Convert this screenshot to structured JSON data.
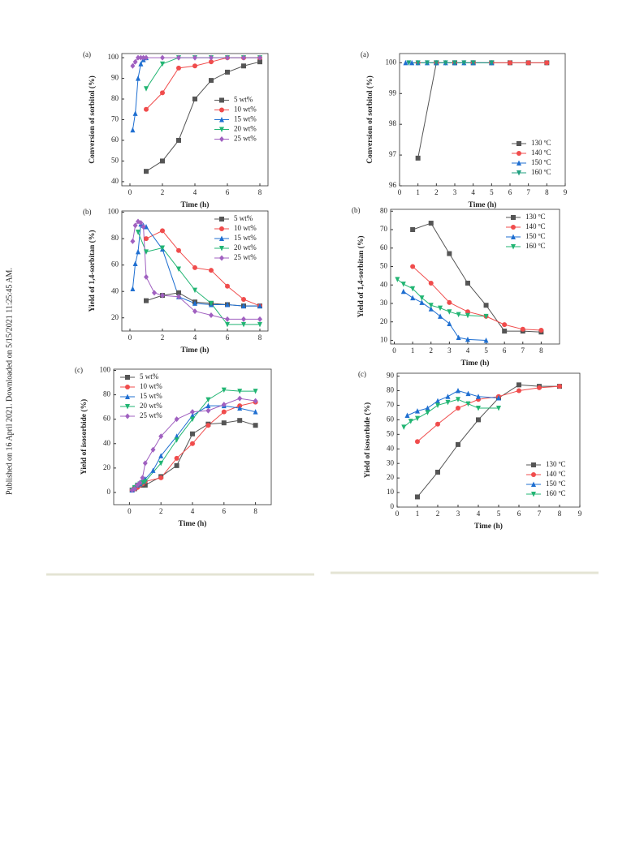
{
  "sidebar": {
    "text": "Published on 16 April 2021. Downloaded on 5/15/2021 11:25:45 AM."
  },
  "chart_data": [
    {
      "type": "line",
      "label": "(a)",
      "y_label": "Conversion of sorbitol (%)",
      "x_label": "Time (h)",
      "xlim": [
        -0.5,
        8.5
      ],
      "xticks": [
        0,
        2,
        4,
        6,
        8
      ],
      "ylim": [
        38,
        102
      ],
      "yticks": [
        40,
        50,
        60,
        70,
        80,
        90,
        100
      ],
      "grid": false,
      "legend": "center right",
      "series": [
        {
          "name": "5 wt%",
          "color": "#555555",
          "marker": "square",
          "x": [
            1,
            2,
            3,
            4,
            5,
            6,
            7,
            8
          ],
          "values": [
            45,
            50,
            60,
            80,
            89,
            93,
            96,
            98
          ]
        },
        {
          "name": "10 wt%",
          "color": "#f04c4c",
          "marker": "circle",
          "x": [
            1,
            2,
            3,
            4,
            5,
            6,
            7,
            8
          ],
          "values": [
            75,
            83,
            95,
            96,
            98,
            100,
            100,
            100
          ]
        },
        {
          "name": "15 wt%",
          "color": "#1f6fd1",
          "marker": "triangle-up",
          "x": [
            0.17,
            0.33,
            0.5,
            0.67,
            0.83,
            1
          ],
          "values": [
            65,
            73,
            90,
            97,
            99,
            100
          ]
        },
        {
          "name": "20 wt%",
          "color": "#22b573",
          "marker": "triangle-down",
          "x": [
            1,
            2,
            3,
            4,
            5,
            6,
            7,
            8
          ],
          "values": [
            85,
            97,
            100,
            100,
            100,
            100,
            100,
            100
          ]
        },
        {
          "name": "25 wt%",
          "color": "#a060c0",
          "marker": "diamond",
          "x": [
            0.17,
            0.33,
            0.5,
            0.67,
            0.83,
            1,
            2,
            3,
            4,
            5,
            6,
            7,
            8
          ],
          "values": [
            96,
            98,
            100,
            100,
            100,
            100,
            100,
            100,
            100,
            100,
            100,
            100,
            100
          ]
        }
      ]
    },
    {
      "type": "line",
      "label": "(a)",
      "y_label": "Conversion of sorbitol (%)",
      "x_label": "Time (h)",
      "xlim": [
        0,
        9
      ],
      "xticks": [
        0,
        1,
        2,
        3,
        4,
        5,
        6,
        7,
        8,
        9
      ],
      "ylim": [
        96,
        100.3
      ],
      "yticks": [
        96,
        97,
        98,
        99,
        100
      ],
      "grid": false,
      "legend": "lower right",
      "series": [
        {
          "name": "130 ºC",
          "color": "#555555",
          "marker": "square",
          "x": [
            1,
            2,
            3,
            4,
            5,
            6,
            7,
            8
          ],
          "values": [
            96.9,
            100,
            100,
            100,
            100,
            100,
            100,
            100
          ]
        },
        {
          "name": "140 ºC",
          "color": "#f04c4c",
          "marker": "circle",
          "x": [
            1,
            2,
            3,
            4,
            5,
            6,
            7,
            8
          ],
          "values": [
            100,
            100,
            100,
            100,
            100,
            100,
            100,
            100
          ]
        },
        {
          "name": "150 ºC",
          "color": "#1f6fd1",
          "marker": "triangle-up",
          "x": [
            0.33,
            0.67,
            1,
            1.5,
            2,
            2.5,
            3,
            3.5,
            4,
            5
          ],
          "values": [
            100,
            100,
            100,
            100,
            100,
            100,
            100,
            100,
            100,
            100
          ]
        },
        {
          "name": "160 ºC",
          "color": "#20a080",
          "marker": "triangle-down",
          "x": [
            0.5,
            1,
            1.5,
            2,
            2.5,
            3,
            3.5,
            4,
            5
          ],
          "values": [
            100,
            100,
            100,
            100,
            100,
            100,
            100,
            100,
            100
          ]
        }
      ]
    },
    {
      "type": "line",
      "label": "(b)",
      "y_label": "Yield of 1,4-sorbitan (%)",
      "x_label": "Time (h)",
      "xlim": [
        -0.5,
        8.5
      ],
      "xticks": [
        0,
        2,
        4,
        6,
        8
      ],
      "ylim": [
        10,
        101
      ],
      "yticks": [
        20,
        40,
        60,
        80,
        100
      ],
      "grid": false,
      "legend": "upper right",
      "series": [
        {
          "name": "5 wt%",
          "color": "#555555",
          "marker": "square",
          "x": [
            1,
            2,
            3,
            4,
            5,
            6,
            7,
            8
          ],
          "values": [
            33,
            37,
            39,
            32,
            31,
            30,
            29,
            29
          ]
        },
        {
          "name": "10 wt%",
          "color": "#f04c4c",
          "marker": "circle",
          "x": [
            1,
            2,
            3,
            4,
            5,
            6,
            7,
            8
          ],
          "values": [
            80,
            86,
            71,
            58,
            56,
            44,
            34,
            29
          ]
        },
        {
          "name": "15 wt%",
          "color": "#1f6fd1",
          "marker": "triangle-up",
          "x": [
            0.17,
            0.33,
            0.5,
            0.67,
            0.83,
            1,
            2,
            3,
            4,
            5,
            6,
            7,
            8
          ],
          "values": [
            42,
            61,
            70,
            91,
            90,
            89,
            72,
            36,
            31,
            30,
            30,
            29,
            29
          ]
        },
        {
          "name": "20 wt%",
          "color": "#22b573",
          "marker": "triangle-down",
          "x": [
            0.5,
            1,
            2,
            3,
            4,
            5,
            6,
            7,
            8
          ],
          "values": [
            85,
            70,
            73,
            57,
            41,
            31,
            15,
            15,
            15
          ]
        },
        {
          "name": "25 wt%",
          "color": "#a060c0",
          "marker": "diamond",
          "x": [
            0.17,
            0.33,
            0.5,
            0.67,
            0.83,
            1,
            1.5,
            2,
            3,
            4,
            5,
            6,
            7,
            8
          ],
          "values": [
            78,
            90,
            93,
            92,
            89,
            51,
            39,
            37,
            36,
            25,
            22,
            19,
            19,
            19
          ]
        }
      ]
    },
    {
      "type": "line",
      "label": "(b)",
      "y_label": "Yield of 1,4-sorbitan (%)",
      "x_label": "Time (h)",
      "xlim": [
        -0.2,
        9
      ],
      "xticks": [
        0,
        1,
        2,
        3,
        4,
        5,
        6,
        7,
        8
      ],
      "ylim": [
        8,
        81
      ],
      "yticks": [
        10,
        20,
        30,
        40,
        50,
        60,
        70,
        80
      ],
      "grid": false,
      "legend": "upper right",
      "series": [
        {
          "name": "130 ºC",
          "color": "#555555",
          "marker": "square",
          "x": [
            1,
            2,
            3,
            4,
            5,
            6,
            7,
            8
          ],
          "values": [
            70,
            73.5,
            57,
            41,
            29,
            15,
            15,
            14.5
          ]
        },
        {
          "name": "140 ºC",
          "color": "#f04c4c",
          "marker": "circle",
          "x": [
            1,
            2,
            3,
            4,
            5,
            6,
            7,
            8
          ],
          "values": [
            50,
            41,
            30.5,
            25.5,
            23,
            18.5,
            16,
            15.5
          ]
        },
        {
          "name": "150 ºC",
          "color": "#1f6fd1",
          "marker": "triangle-up",
          "x": [
            0.5,
            1,
            1.5,
            2,
            2.5,
            3,
            3.5,
            4,
            5
          ],
          "values": [
            36.5,
            33,
            30.5,
            27,
            23,
            19,
            11.5,
            10.5,
            10
          ]
        },
        {
          "name": "160 ºC",
          "color": "#22b573",
          "marker": "triangle-down",
          "x": [
            0.17,
            0.5,
            1,
            1.5,
            2,
            2.5,
            3,
            3.5,
            4,
            5
          ],
          "values": [
            43,
            40.5,
            38,
            33,
            29,
            27.5,
            25.5,
            24,
            23.5,
            23
          ]
        }
      ]
    },
    {
      "type": "line",
      "label": "(c)",
      "y_label": "Yield of isosorbide (%)",
      "x_label": "Time (h)",
      "xlim": [
        -1,
        9
      ],
      "xticks": [
        0,
        2,
        4,
        6,
        8
      ],
      "ylim": [
        -10,
        101
      ],
      "yticks": [
        0,
        20,
        40,
        60,
        80,
        100
      ],
      "grid": false,
      "legend": "upper left",
      "series": [
        {
          "name": "5 wt%",
          "color": "#555555",
          "marker": "square",
          "x": [
            0.17,
            0.33,
            0.5,
            0.67,
            0.83,
            1,
            2,
            3,
            4,
            5,
            6,
            7,
            8
          ],
          "values": [
            2,
            3,
            5,
            6,
            6,
            6,
            13,
            22,
            48,
            56,
            57,
            59,
            55
          ]
        },
        {
          "name": "10 wt%",
          "color": "#f04c4c",
          "marker": "circle",
          "x": [
            0.17,
            0.33,
            0.5,
            0.67,
            0.83,
            1,
            2,
            3,
            4,
            5,
            6,
            7,
            8
          ],
          "values": [
            2,
            3,
            4,
            6,
            7,
            9,
            12,
            28,
            40,
            55,
            66,
            71,
            74
          ]
        },
        {
          "name": "15 wt%",
          "color": "#1f6fd1",
          "marker": "triangle-up",
          "x": [
            0.17,
            0.33,
            0.5,
            0.67,
            0.83,
            1,
            1.5,
            2,
            3,
            4,
            5,
            6,
            7,
            8
          ],
          "values": [
            2,
            4,
            6,
            7,
            9,
            11,
            18,
            30,
            46,
            63,
            71,
            71,
            69,
            66
          ]
        },
        {
          "name": "20 wt%",
          "color": "#22b573",
          "marker": "triangle-down",
          "x": [
            0.17,
            0.33,
            0.5,
            0.67,
            0.83,
            1,
            2,
            3,
            4,
            5,
            6,
            7,
            8
          ],
          "values": [
            2,
            4,
            6,
            7,
            8,
            9,
            24,
            43,
            60,
            76,
            84,
            83,
            83
          ]
        },
        {
          "name": "25 wt%",
          "color": "#a060c0",
          "marker": "diamond",
          "x": [
            0.17,
            0.33,
            0.5,
            0.67,
            0.83,
            1,
            1.5,
            2,
            3,
            4,
            5,
            6,
            7,
            8
          ],
          "values": [
            2,
            3,
            6,
            8,
            12,
            24,
            35,
            46,
            60,
            66,
            67,
            72,
            77,
            75
          ]
        }
      ]
    },
    {
      "type": "line",
      "label": "(c)",
      "y_label": "Yield of isosorbide (%)",
      "x_label": "Time (h)",
      "xlim": [
        0,
        9
      ],
      "xticks": [
        0,
        1,
        2,
        3,
        4,
        5,
        6,
        7,
        8,
        9
      ],
      "ylim": [
        0,
        92
      ],
      "yticks": [
        0,
        10,
        20,
        30,
        40,
        50,
        60,
        70,
        80,
        90
      ],
      "grid": false,
      "legend": "lower right",
      "series": [
        {
          "name": "130 ºC",
          "color": "#555555",
          "marker": "square",
          "x": [
            1,
            2,
            3,
            4,
            5,
            6,
            7,
            8
          ],
          "values": [
            7,
            24,
            43,
            60,
            75,
            84,
            83,
            83
          ]
        },
        {
          "name": "140 ºC",
          "color": "#f04c4c",
          "marker": "circle",
          "x": [
            1,
            2,
            3,
            4,
            5,
            6,
            7,
            8
          ],
          "values": [
            45,
            57,
            68,
            74,
            76,
            80,
            82,
            83
          ]
        },
        {
          "name": "150 ºC",
          "color": "#1f6fd1",
          "marker": "triangle-up",
          "x": [
            0.5,
            1,
            1.5,
            2,
            2.5,
            3,
            3.5,
            4,
            5
          ],
          "values": [
            63,
            66,
            68,
            73,
            76,
            80,
            78,
            76,
            75
          ]
        },
        {
          "name": "160 ºC",
          "color": "#22b573",
          "marker": "triangle-down",
          "x": [
            0.33,
            0.67,
            1,
            1.5,
            2,
            2.5,
            3,
            3.5,
            4,
            5
          ],
          "values": [
            55,
            59,
            61,
            65,
            70,
            72,
            74,
            71,
            68,
            68
          ]
        }
      ]
    }
  ]
}
